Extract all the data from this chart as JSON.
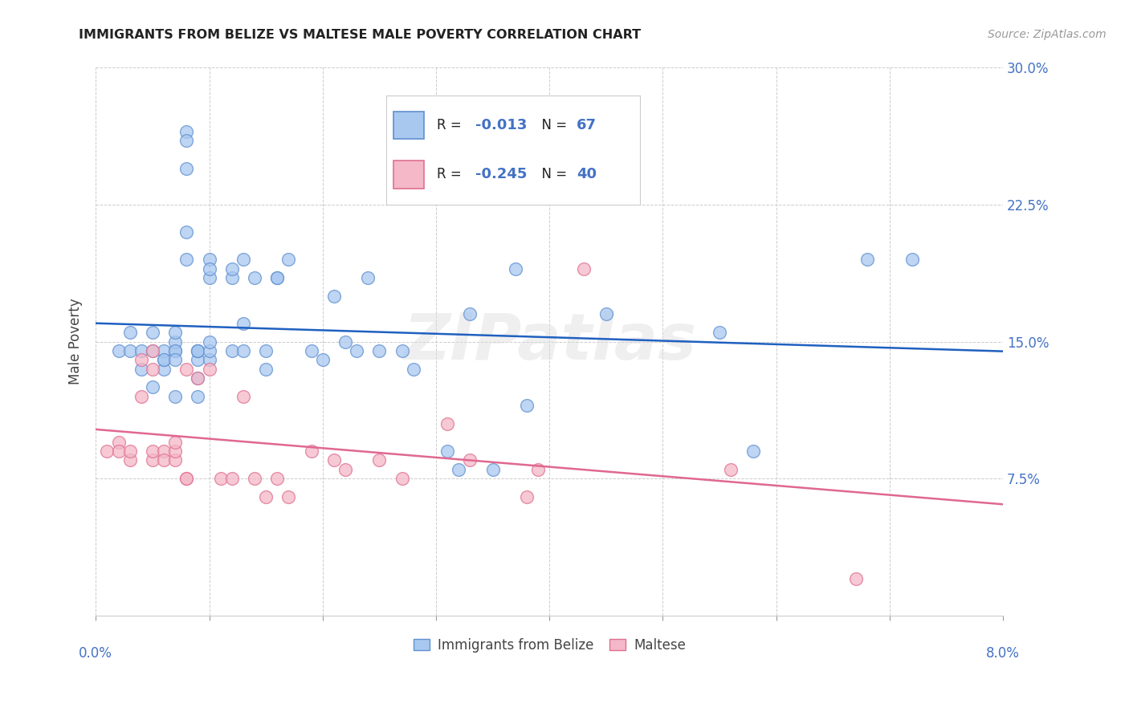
{
  "title": "IMMIGRANTS FROM BELIZE VS MALTESE MALE POVERTY CORRELATION CHART",
  "source": "Source: ZipAtlas.com",
  "ylabel": "Male Poverty",
  "xlim": [
    0.0,
    0.08
  ],
  "ylim": [
    0.0,
    0.3
  ],
  "yticks": [
    0.0,
    0.075,
    0.15,
    0.225,
    0.3
  ],
  "ytick_labels_right": [
    "",
    "7.5%",
    "15.0%",
    "22.5%",
    "30.0%"
  ],
  "xticks": [
    0.0,
    0.01,
    0.02,
    0.03,
    0.04,
    0.05,
    0.06,
    0.07,
    0.08
  ],
  "blue_R": "-0.013",
  "blue_N": "67",
  "pink_R": "-0.245",
  "pink_N": "40",
  "blue_fill": "#A8C8F0",
  "pink_fill": "#F4B8C8",
  "blue_edge": "#6090D0",
  "pink_edge": "#E07090",
  "blue_line_color": "#2060C0",
  "pink_line_color": "#E06890",
  "accent_color": "#4472C4",
  "watermark": "ZIPatlas",
  "legend_label_blue": "Immigrants from Belize",
  "legend_label_pink": "Maltese",
  "blue_x": [
    0.002,
    0.003,
    0.003,
    0.004,
    0.004,
    0.005,
    0.005,
    0.005,
    0.006,
    0.006,
    0.006,
    0.006,
    0.007,
    0.007,
    0.007,
    0.007,
    0.007,
    0.007,
    0.008,
    0.008,
    0.008,
    0.008,
    0.008,
    0.009,
    0.009,
    0.009,
    0.009,
    0.009,
    0.009,
    0.01,
    0.01,
    0.01,
    0.01,
    0.01,
    0.01,
    0.012,
    0.012,
    0.012,
    0.013,
    0.013,
    0.013,
    0.014,
    0.015,
    0.015,
    0.016,
    0.016,
    0.017,
    0.019,
    0.02,
    0.021,
    0.022,
    0.023,
    0.024,
    0.025,
    0.027,
    0.028,
    0.031,
    0.032,
    0.033,
    0.035,
    0.037,
    0.038,
    0.045,
    0.055,
    0.058,
    0.068,
    0.072
  ],
  "blue_y": [
    0.145,
    0.155,
    0.145,
    0.145,
    0.135,
    0.155,
    0.145,
    0.125,
    0.135,
    0.14,
    0.145,
    0.14,
    0.145,
    0.15,
    0.145,
    0.14,
    0.155,
    0.12,
    0.265,
    0.26,
    0.245,
    0.195,
    0.21,
    0.14,
    0.145,
    0.145,
    0.145,
    0.12,
    0.13,
    0.195,
    0.185,
    0.19,
    0.14,
    0.145,
    0.15,
    0.185,
    0.19,
    0.145,
    0.195,
    0.145,
    0.16,
    0.185,
    0.135,
    0.145,
    0.185,
    0.185,
    0.195,
    0.145,
    0.14,
    0.175,
    0.15,
    0.145,
    0.185,
    0.145,
    0.145,
    0.135,
    0.09,
    0.08,
    0.165,
    0.08,
    0.19,
    0.115,
    0.165,
    0.155,
    0.09,
    0.195,
    0.195
  ],
  "pink_x": [
    0.001,
    0.002,
    0.002,
    0.003,
    0.003,
    0.004,
    0.004,
    0.005,
    0.005,
    0.005,
    0.005,
    0.006,
    0.006,
    0.007,
    0.007,
    0.007,
    0.008,
    0.008,
    0.008,
    0.009,
    0.01,
    0.011,
    0.012,
    0.013,
    0.014,
    0.015,
    0.016,
    0.017,
    0.019,
    0.021,
    0.022,
    0.025,
    0.027,
    0.031,
    0.033,
    0.038,
    0.039,
    0.043,
    0.056,
    0.067
  ],
  "pink_y": [
    0.09,
    0.095,
    0.09,
    0.085,
    0.09,
    0.14,
    0.12,
    0.085,
    0.09,
    0.135,
    0.145,
    0.09,
    0.085,
    0.085,
    0.09,
    0.095,
    0.075,
    0.075,
    0.135,
    0.13,
    0.135,
    0.075,
    0.075,
    0.12,
    0.075,
    0.065,
    0.075,
    0.065,
    0.09,
    0.085,
    0.08,
    0.085,
    0.075,
    0.105,
    0.085,
    0.065,
    0.08,
    0.19,
    0.08,
    0.02
  ]
}
